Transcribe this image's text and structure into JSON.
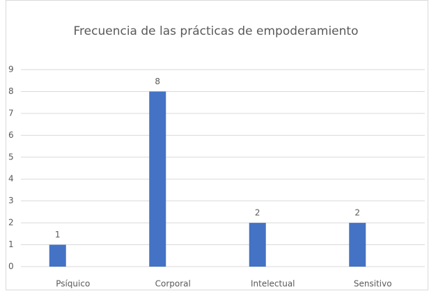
{
  "chart_data": {
    "type": "bar",
    "title": "Frecuencia de las prácticas de empoderamiento",
    "categories": [
      "Psíquico",
      "Corporal",
      "Intelectual",
      "Sensitivo"
    ],
    "values": [
      1,
      8,
      2,
      2
    ],
    "color": "#4472c4",
    "ylim": [
      0,
      9
    ],
    "yticks": [
      0,
      1,
      2,
      3,
      4,
      5,
      6,
      7,
      8,
      9
    ],
    "grid": true,
    "data_labels": true
  }
}
